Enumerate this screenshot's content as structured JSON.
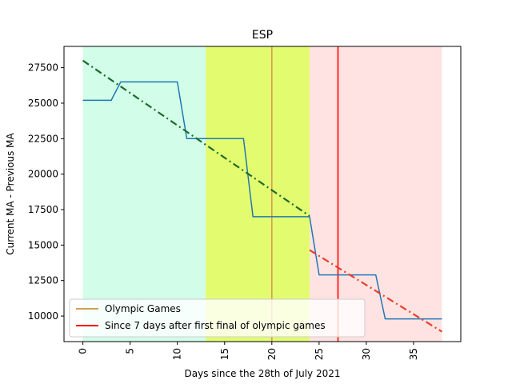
{
  "chart_data": {
    "type": "line",
    "title": "ESP",
    "xlabel": "Days since the 28th of July 2021",
    "ylabel": "Current MA - Previous MA",
    "xlim": [
      -2,
      40
    ],
    "ylim": [
      8200,
      29000
    ],
    "x_ticks": [
      0,
      5,
      10,
      15,
      20,
      25,
      30,
      35
    ],
    "x_tick_labels": [
      "0",
      "5",
      "10",
      "15",
      "20",
      "25",
      "30",
      "35"
    ],
    "y_ticks": [
      10000,
      12500,
      15000,
      17500,
      20000,
      22500,
      25000,
      27500
    ],
    "y_tick_labels": [
      "10000",
      "12500",
      "15000",
      "17500",
      "20000",
      "22500",
      "25000",
      "27500"
    ],
    "grid": false,
    "legend_position": "lower-left",
    "shaded_regions": [
      {
        "x_start": 0,
        "x_end": 13,
        "color": "#d2fde8"
      },
      {
        "x_start": 13,
        "x_end": 24,
        "color": "#e3fc6f"
      },
      {
        "x_start": 24,
        "x_end": 38,
        "color": "#ffe3e2"
      }
    ],
    "vertical_lines": [
      {
        "x": 20,
        "color": "#d4a050",
        "legend": "Olympic Games"
      },
      {
        "x": 27,
        "color": "#ff0000",
        "legend": "Since 7 days after first final of olympic games"
      }
    ],
    "series": [
      {
        "color": "#1f77b4",
        "style": "solid",
        "x": [
          0,
          1,
          2,
          3,
          4,
          5,
          6,
          7,
          8,
          9,
          10,
          11,
          12,
          13,
          14,
          15,
          16,
          17,
          18,
          19,
          20,
          21,
          22,
          23,
          24,
          25,
          26,
          27,
          28,
          29,
          30,
          31,
          32,
          33,
          34,
          35,
          36,
          37,
          38
        ],
        "values": [
          25200,
          25200,
          25200,
          25200,
          26500,
          26500,
          26500,
          26500,
          26500,
          26500,
          26500,
          22500,
          22500,
          22500,
          22500,
          22500,
          22500,
          22500,
          17000,
          17000,
          17000,
          17000,
          17000,
          17000,
          17000,
          12900,
          12900,
          12900,
          12900,
          12900,
          12900,
          12900,
          9800,
          9800,
          9800,
          9800,
          9800,
          9800,
          9800
        ]
      },
      {
        "color": "#1a6b2a",
        "style": "dashdot",
        "x": [
          0,
          24
        ],
        "values": [
          28000,
          17050
        ]
      },
      {
        "color": "#e8402a",
        "style": "dashdot",
        "x": [
          24,
          38
        ],
        "values": [
          14650,
          8900
        ]
      }
    ],
    "legend": [
      {
        "label": "Olympic Games",
        "color": "#d4a050"
      },
      {
        "label": "Since 7 days after first final of olympic games",
        "color": "#ff0000"
      }
    ]
  }
}
